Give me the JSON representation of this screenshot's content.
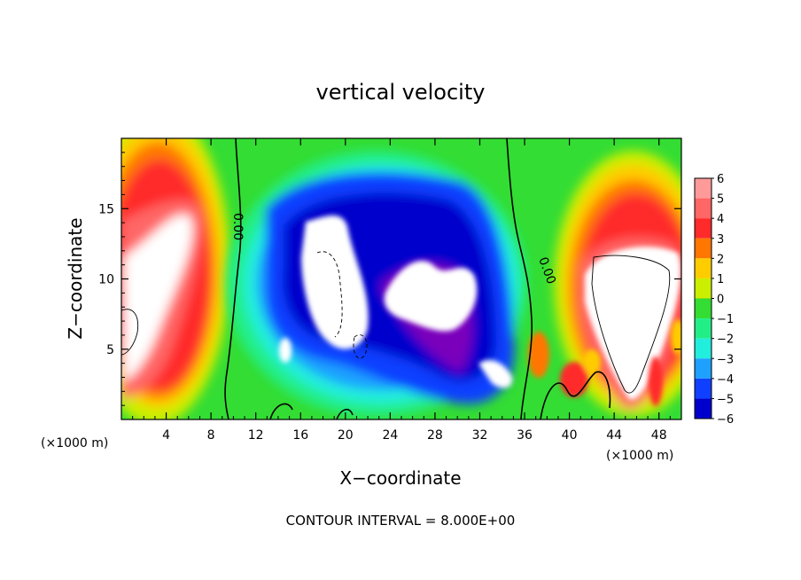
{
  "chart_data": {
    "type": "heatmap",
    "title": "vertical velocity",
    "xlabel": "X−coordinate",
    "ylabel": "Z−coordinate",
    "x_unit": "(×1000 m)",
    "x_unit_right": "(×1000 m)",
    "xlim": [
      0,
      50
    ],
    "ylim": [
      0,
      20
    ],
    "x_ticks": [
      4,
      8,
      12,
      16,
      20,
      24,
      28,
      32,
      36,
      40,
      44,
      48
    ],
    "y_ticks": [
      5,
      10,
      15
    ],
    "colorbar": {
      "min": -6,
      "max": 6,
      "ticks": [
        "6",
        "5",
        "4",
        "3",
        "2",
        "1",
        "0",
        "−1",
        "−2",
        "−3",
        "−4",
        "−5",
        "−6"
      ],
      "colors": [
        "#ff9a9a",
        "#ff6666",
        "#ff2a2a",
        "#ff7700",
        "#ffcc00",
        "#ccee00",
        "#33dd33",
        "#22ee88",
        "#22eedd",
        "#1ea0ff",
        "#1040ff",
        "#0000cc",
        "#7a00bb"
      ]
    },
    "contour_labels": [
      "0.00",
      "0.00"
    ],
    "features": [
      {
        "kind": "updraft",
        "x": [
          0,
          9
        ],
        "z": [
          1,
          16
        ],
        "peak": 6
      },
      {
        "kind": "downdraft",
        "x": [
          11,
          35
        ],
        "z": [
          0.5,
          17
        ],
        "peak": -6
      },
      {
        "kind": "updraft",
        "x": [
          41,
          50
        ],
        "z": [
          0.5,
          16
        ],
        "peak": 6
      },
      {
        "kind": "updraft",
        "x": [
          36,
          42
        ],
        "z": [
          1,
          6
        ],
        "peak": 4
      }
    ],
    "footnote": "CONTOUR INTERVAL = 8.000E+00"
  }
}
